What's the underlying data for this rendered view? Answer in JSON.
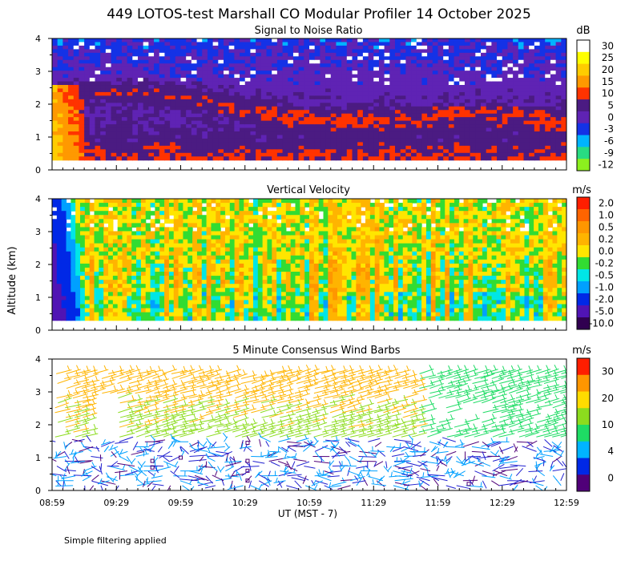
{
  "title": "449 LOTOS-test Marshall CO Modular Profiler 14 October 2025",
  "footer_note": "Simple filtering applied",
  "chart_data": [
    {
      "type": "heatmap",
      "title": "Signal to Noise Ratio",
      "ylabel": "",
      "ylim": [
        0,
        4
      ],
      "yticks": [
        0,
        1,
        2,
        3,
        4
      ],
      "xlim": [
        "08:59",
        "12:59"
      ],
      "colorbar": {
        "unit": "dB",
        "labels": [
          "30",
          "25",
          "20",
          "15",
          "10",
          "5",
          "0",
          "-3",
          "-6",
          "-9",
          "-12"
        ],
        "colors": [
          "#ffffff",
          "#ffff00",
          "#ffcc00",
          "#ff9900",
          "#ff3300",
          "#4b1b82",
          "#5f23b4",
          "#1432e6",
          "#00b4ff",
          "#28dc82",
          "#8cf01e"
        ]
      }
    },
    {
      "type": "heatmap",
      "title": "Vertical Velocity",
      "ylabel": "Altitude (km)",
      "ylim": [
        0,
        4
      ],
      "yticks": [
        0,
        1,
        2,
        3,
        4
      ],
      "xlim": [
        "08:59",
        "12:59"
      ],
      "colorbar": {
        "unit": "m/s",
        "labels": [
          "2.0",
          "1.0",
          "0.5",
          "0.2",
          "0.0",
          "-0.2",
          "-0.5",
          "-1.0",
          "-2.0",
          "-5.0",
          "-10.0"
        ],
        "colors": [
          "#ff1e00",
          "#ff6400",
          "#ff9600",
          "#ffb400",
          "#ffe600",
          "#32dc32",
          "#00e6e6",
          "#00a0ff",
          "#0028e6",
          "#5014b4",
          "#300050"
        ]
      }
    },
    {
      "type": "scatter",
      "title": "5 Minute Consensus Wind Barbs",
      "xlabel": "UT  (MST - 7)",
      "ylim": [
        0,
        4
      ],
      "yticks": [
        0,
        1,
        2,
        3,
        4
      ],
      "xlim": [
        "08:59",
        "12:59"
      ],
      "xticks": [
        "08:59",
        "09:29",
        "09:59",
        "10:29",
        "10:59",
        "11:29",
        "11:59",
        "12:29",
        "12:59"
      ],
      "colorbar": {
        "unit": "m/s",
        "labels": [
          "30",
          "20",
          "10",
          "4",
          "0"
        ],
        "colors": [
          "#ff1e00",
          "#ff9600",
          "#ffdc00",
          "#8cdc1e",
          "#1edc64",
          "#00b4ff",
          "#0028e6",
          "#500078"
        ]
      }
    }
  ]
}
